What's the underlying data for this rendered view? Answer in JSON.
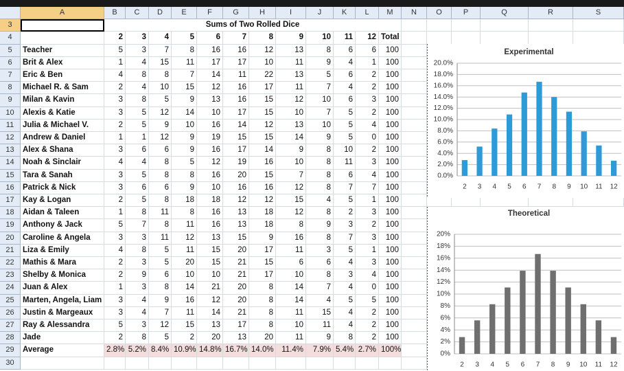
{
  "sheet": {
    "columns": [
      "A",
      "B",
      "C",
      "D",
      "E",
      "F",
      "G",
      "H",
      "I",
      "J",
      "K",
      "L",
      "M",
      "N",
      "O",
      "P",
      "Q",
      "R",
      "S"
    ],
    "row_numbers": [
      3,
      4,
      5,
      6,
      7,
      8,
      9,
      10,
      11,
      12,
      13,
      14,
      15,
      16,
      17,
      18,
      19,
      20,
      21,
      22,
      23,
      24,
      25,
      26,
      27,
      28,
      29,
      30
    ],
    "title": "Sums of Two Rolled Dice",
    "header": [
      2,
      3,
      4,
      5,
      6,
      7,
      8,
      9,
      10,
      11,
      12,
      "Total"
    ],
    "rows": [
      {
        "name": "Teacher",
        "values": [
          5,
          3,
          7,
          8,
          16,
          16,
          12,
          13,
          8,
          6,
          6,
          100
        ]
      },
      {
        "name": "Brit & Alex",
        "values": [
          1,
          4,
          15,
          11,
          17,
          17,
          10,
          11,
          9,
          4,
          1,
          100
        ]
      },
      {
        "name": "Eric & Ben",
        "values": [
          4,
          8,
          8,
          7,
          14,
          11,
          22,
          13,
          5,
          6,
          2,
          100
        ]
      },
      {
        "name": "Michael R. & Sam",
        "values": [
          2,
          4,
          10,
          15,
          12,
          16,
          17,
          11,
          7,
          4,
          2,
          100
        ]
      },
      {
        "name": "Milan & Kavin",
        "values": [
          3,
          8,
          5,
          9,
          13,
          16,
          15,
          12,
          10,
          6,
          3,
          100
        ]
      },
      {
        "name": "Alexis & Katie",
        "values": [
          3,
          5,
          12,
          14,
          10,
          17,
          15,
          10,
          7,
          5,
          2,
          100
        ]
      },
      {
        "name": "Julia & Michael V.",
        "values": [
          2,
          5,
          9,
          10,
          16,
          14,
          12,
          13,
          10,
          5,
          4,
          100
        ]
      },
      {
        "name": "Andrew & Daniel",
        "values": [
          1,
          1,
          12,
          9,
          19,
          15,
          15,
          14,
          9,
          5,
          0,
          100
        ]
      },
      {
        "name": "Alex & Shana",
        "values": [
          3,
          6,
          6,
          9,
          16,
          17,
          14,
          9,
          8,
          10,
          2,
          100
        ]
      },
      {
        "name": "Noah & Sinclair",
        "values": [
          4,
          4,
          8,
          5,
          12,
          19,
          16,
          10,
          8,
          11,
          3,
          100
        ]
      },
      {
        "name": "Tara & Sanah",
        "values": [
          3,
          5,
          8,
          8,
          16,
          20,
          15,
          7,
          8,
          6,
          4,
          100
        ]
      },
      {
        "name": "Patrick & Nick",
        "values": [
          3,
          6,
          6,
          9,
          10,
          16,
          16,
          12,
          8,
          7,
          7,
          100
        ]
      },
      {
        "name": "Kay & Logan",
        "values": [
          2,
          5,
          8,
          18,
          18,
          12,
          12,
          15,
          4,
          5,
          1,
          100
        ]
      },
      {
        "name": "Aidan & Taleen",
        "values": [
          1,
          8,
          11,
          8,
          16,
          13,
          18,
          12,
          8,
          2,
          3,
          100
        ]
      },
      {
        "name": "Anthony & Jack",
        "values": [
          5,
          7,
          8,
          11,
          16,
          13,
          18,
          8,
          9,
          3,
          2,
          100
        ]
      },
      {
        "name": "Caroline & Angela",
        "values": [
          3,
          3,
          11,
          12,
          13,
          15,
          9,
          16,
          8,
          7,
          3,
          100
        ]
      },
      {
        "name": "Liza & Emily",
        "values": [
          4,
          8,
          5,
          11,
          15,
          20,
          17,
          11,
          3,
          5,
          1,
          100
        ]
      },
      {
        "name": "Mathis & Mara",
        "values": [
          2,
          3,
          5,
          20,
          15,
          21,
          15,
          6,
          6,
          4,
          3,
          100
        ]
      },
      {
        "name": "Shelby & Monica",
        "values": [
          2,
          9,
          6,
          10,
          10,
          21,
          17,
          10,
          8,
          3,
          4,
          100
        ]
      },
      {
        "name": "Juan & Alex",
        "values": [
          1,
          3,
          8,
          14,
          21,
          20,
          8,
          14,
          7,
          4,
          0,
          100
        ]
      },
      {
        "name": "Marten, Angela, Liam",
        "values": [
          3,
          4,
          9,
          16,
          12,
          20,
          8,
          14,
          4,
          5,
          5,
          100
        ]
      },
      {
        "name": "Justin & Margeaux",
        "values": [
          3,
          4,
          7,
          11,
          14,
          21,
          8,
          11,
          15,
          4,
          2,
          100
        ]
      },
      {
        "name": "Ray & Alessandra",
        "values": [
          5,
          3,
          12,
          15,
          13,
          17,
          8,
          10,
          11,
          4,
          2,
          100
        ]
      },
      {
        "name": "Jade",
        "values": [
          2,
          8,
          5,
          2,
          20,
          13,
          20,
          11,
          9,
          8,
          2,
          100
        ]
      }
    ],
    "average": {
      "name": "Average",
      "values": [
        "2.8%",
        "5.2%",
        "8.4%",
        "10.9%",
        "14.8%",
        "16.7%",
        "14.0%",
        "11.4%",
        "7.9%",
        "5.4%",
        "2.7%",
        "100%"
      ]
    }
  },
  "chart_data": [
    {
      "type": "bar",
      "title": "Experimental",
      "categories": [
        2,
        3,
        4,
        5,
        6,
        7,
        8,
        9,
        10,
        11,
        12
      ],
      "values": [
        2.8,
        5.2,
        8.4,
        10.9,
        14.8,
        16.7,
        14.0,
        11.4,
        7.9,
        5.4,
        2.7
      ],
      "color": "#2e9bd6",
      "ylim": [
        0,
        20
      ],
      "grid": true,
      "yticks": [
        {
          "value": 0,
          "label": "0.0%"
        },
        {
          "value": 2,
          "label": "2.0%"
        },
        {
          "value": 4,
          "label": "4.0%"
        },
        {
          "value": 6,
          "label": "6.0%"
        },
        {
          "value": 8,
          "label": "8.0%"
        },
        {
          "value": 10,
          "label": "10.0%"
        },
        {
          "value": 12,
          "label": "12.0%"
        },
        {
          "value": 14,
          "label": "14.0%"
        },
        {
          "value": 16,
          "label": "16.0%"
        },
        {
          "value": 18,
          "label": "18.0%"
        },
        {
          "value": 20,
          "label": "20.0%"
        }
      ]
    },
    {
      "type": "bar",
      "title": "Theoretical",
      "categories": [
        2,
        3,
        4,
        5,
        6,
        7,
        8,
        9,
        10,
        11,
        12
      ],
      "values": [
        2.8,
        5.6,
        8.3,
        11.1,
        13.9,
        16.7,
        13.9,
        11.1,
        8.3,
        5.6,
        2.8
      ],
      "color": "#6f6f6f",
      "ylim": [
        0,
        20
      ],
      "grid": true,
      "yticks": [
        {
          "value": 0,
          "label": "0%"
        },
        {
          "value": 2,
          "label": "2%"
        },
        {
          "value": 4,
          "label": "4%"
        },
        {
          "value": 6,
          "label": "6%"
        },
        {
          "value": 8,
          "label": "8%"
        },
        {
          "value": 10,
          "label": "10%"
        },
        {
          "value": 12,
          "label": "12%"
        },
        {
          "value": 14,
          "label": "14%"
        },
        {
          "value": 16,
          "label": "16%"
        },
        {
          "value": 18,
          "label": "18%"
        },
        {
          "value": 20,
          "label": "20%"
        }
      ]
    }
  ]
}
